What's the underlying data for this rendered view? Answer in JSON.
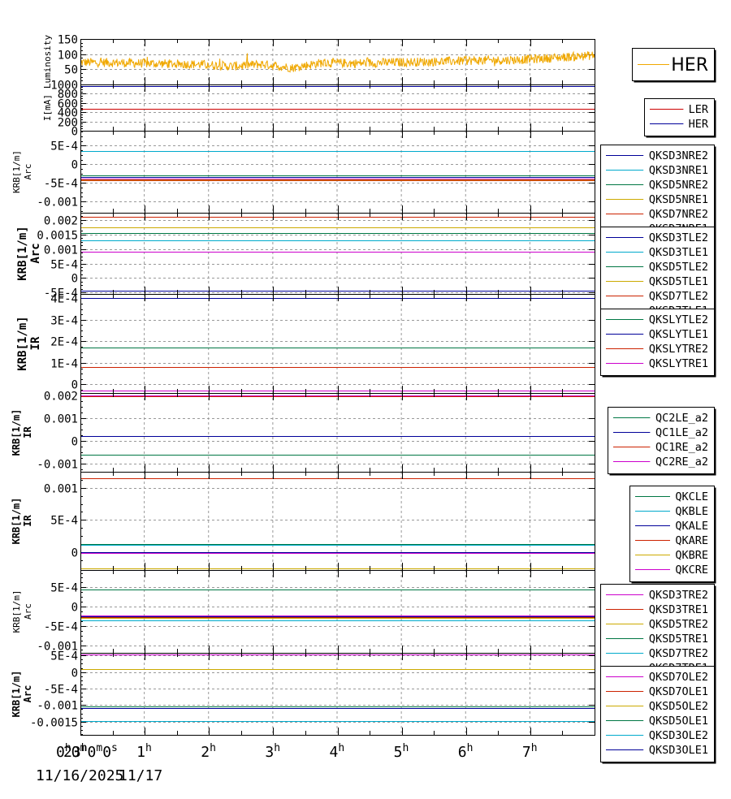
{
  "chart_data": [
    {
      "type": "line",
      "ylabel": [
        "Luminosity"
      ],
      "ylim": [
        0,
        150
      ],
      "yticks": [
        {
          "v": 150,
          "t": "150"
        },
        {
          "v": 100,
          "t": "100"
        },
        {
          "v": 50,
          "t": "50"
        }
      ],
      "legend_style": "big",
      "series": [
        {
          "name": "HER",
          "color": "#f0a800",
          "noisy": true,
          "baseline": [
            73,
            72,
            70,
            68,
            66,
            60,
            67,
            55,
            72,
            70,
            72,
            74,
            76,
            79,
            80,
            84,
            90,
            96
          ]
        }
      ]
    },
    {
      "type": "line",
      "ylabel": [
        "I[mA]"
      ],
      "ylim": [
        0,
        1000
      ],
      "yticks": [
        {
          "v": 1000,
          "t": "1000"
        },
        {
          "v": 800,
          "t": "800"
        },
        {
          "v": 600,
          "t": "600"
        },
        {
          "v": 400,
          "t": "400"
        },
        {
          "v": 200,
          "t": "200"
        },
        {
          "v": 0,
          "t": "0"
        }
      ],
      "series": [
        {
          "name": "LER",
          "color": "#cc0000",
          "values": [
            470,
            470
          ]
        },
        {
          "name": "HER",
          "color": "#000099",
          "values": [
            960,
            960
          ]
        }
      ]
    },
    {
      "type": "line",
      "ylabel": [
        "KRB[1/m]",
        "Arc"
      ],
      "ylim": [
        -0.0013,
        0.0009
      ],
      "yticks": [
        {
          "v": 0.0005,
          "t": "5E-4"
        },
        {
          "v": 0,
          "t": "0"
        },
        {
          "v": -0.0005,
          "t": "-5E-4"
        },
        {
          "v": -0.001,
          "t": "-0.001"
        }
      ],
      "series": [
        {
          "name": "QKSD3NRE2",
          "color": "#000099",
          "values": [
            -0.00035,
            -0.00035
          ]
        },
        {
          "name": "QKSD3NRE1",
          "color": "#00aacc",
          "values": [
            0.00035,
            0.00035
          ]
        },
        {
          "name": "QKSD5NRE2",
          "color": "#007744",
          "values": [
            -0.0003,
            -0.0003
          ]
        },
        {
          "name": "QKSD5NRE1",
          "color": "#ccaa00",
          "values": [
            -0.0004,
            -0.0004
          ]
        },
        {
          "name": "QKSD7NRE2",
          "color": "#cc2200",
          "values": [
            -0.00042,
            -0.00042
          ]
        },
        {
          "name": "QKSD7NRE1",
          "color": "#cc00cc",
          "values": [
            -0.00038,
            -0.00038
          ]
        }
      ]
    },
    {
      "type": "line",
      "ylabel": [
        "KRB[1/m]",
        "Arc"
      ],
      "ylim": [
        -0.00055,
        0.00225
      ],
      "yticks": [
        {
          "v": 0.002,
          "t": "0.002"
        },
        {
          "v": 0.0015,
          "t": "0.0015"
        },
        {
          "v": 0.001,
          "t": "0.001"
        },
        {
          "v": 0.0005,
          "t": "5E-4"
        },
        {
          "v": 0,
          "t": "0"
        },
        {
          "v": -0.0005,
          "t": "-5E-4"
        }
      ],
      "series": [
        {
          "name": "QKSD3TLE2",
          "color": "#000099",
          "values": [
            -0.00045,
            -0.00045
          ]
        },
        {
          "name": "QKSD3TLE1",
          "color": "#00aacc",
          "values": [
            0.0013,
            0.0013
          ]
        },
        {
          "name": "QKSD5TLE2",
          "color": "#007744",
          "values": [
            0.00155,
            0.00155
          ]
        },
        {
          "name": "QKSD5TLE1",
          "color": "#ccaa00",
          "values": [
            0.00175,
            0.00175
          ]
        },
        {
          "name": "QKSD7TLE2",
          "color": "#cc2200",
          "values": [
            0.0021,
            0.0021
          ]
        },
        {
          "name": "QKSD7TLE1",
          "color": "#cc00cc",
          "values": [
            0.0009,
            0.0009
          ]
        }
      ]
    },
    {
      "type": "line",
      "ylabel": [
        "KRB[1/m]",
        "IR"
      ],
      "ylim": [
        -4e-05,
        0.00042
      ],
      "yticks": [
        {
          "v": 0.0004,
          "t": "4E-4"
        },
        {
          "v": 0.0003,
          "t": "3E-4"
        },
        {
          "v": 0.0002,
          "t": "2E-4"
        },
        {
          "v": 0.0001,
          "t": "1E-4"
        },
        {
          "v": 0,
          "t": "0"
        }
      ],
      "series": [
        {
          "name": "QKSLYTLE2",
          "color": "#007744",
          "values": [
            0.00017,
            0.00017
          ]
        },
        {
          "name": "QKSLYTLE1",
          "color": "#000099",
          "values": [
            0.0004,
            0.0004
          ]
        },
        {
          "name": "QKSLYTRE2",
          "color": "#cc2200",
          "values": [
            8e-05,
            8e-05
          ]
        },
        {
          "name": "QKSLYTRE1",
          "color": "#cc00cc",
          "values": [
            -3e-05,
            -3e-05
          ]
        }
      ]
    },
    {
      "type": "line",
      "ylabel": [
        "KRB[1/m]",
        "IR"
      ],
      "ylim": [
        -0.00135,
        0.0021
      ],
      "yticks": [
        {
          "v": 0.002,
          "t": "0.002"
        },
        {
          "v": 0.001,
          "t": "0.001"
        },
        {
          "v": 0,
          "t": "0"
        },
        {
          "v": -0.001,
          "t": "-0.001"
        }
      ],
      "series": [
        {
          "name": "QC2LE_a2",
          "color": "#007744",
          "values": [
            -0.0006,
            -0.0006
          ]
        },
        {
          "name": "QC1LE_a2",
          "color": "#000099",
          "values": [
            0.0002,
            0.0002
          ]
        },
        {
          "name": "QC1RE_a2",
          "color": "#cc2200",
          "values": [
            0.00195,
            0.00195
          ]
        },
        {
          "name": "QC2RE_a2",
          "color": "#cc00cc",
          "values": [
            0.00198,
            0.00198
          ]
        }
      ]
    },
    {
      "type": "line",
      "ylabel": [
        "KRB[1/m]",
        "IR"
      ],
      "ylim": [
        -0.00028,
        0.00125
      ],
      "yticks": [
        {
          "v": 0.001,
          "t": "0.001"
        },
        {
          "v": 0.0005,
          "t": "5E-4"
        },
        {
          "v": 0,
          "t": "0"
        }
      ],
      "series": [
        {
          "name": "QKCLE",
          "color": "#007744",
          "values": [
            0.00013,
            0.00013
          ]
        },
        {
          "name": "QKBLE",
          "color": "#00aacc",
          "values": [
            0.000115,
            0.000115
          ]
        },
        {
          "name": "QKALE",
          "color": "#000099",
          "values": [
            0.0,
            0.0
          ]
        },
        {
          "name": "QKARE",
          "color": "#cc2200",
          "values": [
            0.00115,
            0.00115
          ]
        },
        {
          "name": "QKBRE",
          "color": "#ccaa00",
          "values": [
            -0.00025,
            -0.00025
          ]
        },
        {
          "name": "QKCRE",
          "color": "#cc00cc",
          "values": [
            -1e-05,
            -1e-05
          ]
        }
      ]
    },
    {
      "type": "line",
      "ylabel": [
        "KRB[1/m]",
        "Arc"
      ],
      "ylim": [
        -0.0012,
        0.00095
      ],
      "yticks": [
        {
          "v": 0.0005,
          "t": "5E-4"
        },
        {
          "v": 0,
          "t": "0"
        },
        {
          "v": -0.0005,
          "t": "-5E-4"
        },
        {
          "v": -0.001,
          "t": "-0.001"
        }
      ],
      "series": [
        {
          "name": "QKSD3TRE2",
          "color": "#cc00cc",
          "values": [
            -0.00022,
            -0.00022
          ]
        },
        {
          "name": "QKSD3TRE1",
          "color": "#cc2200",
          "values": [
            -0.00028,
            -0.00028
          ]
        },
        {
          "name": "QKSD5TRE2",
          "color": "#ccaa00",
          "values": [
            -0.0003,
            -0.0003
          ]
        },
        {
          "name": "QKSD5TRE1",
          "color": "#007744",
          "values": [
            0.00045,
            0.00045
          ]
        },
        {
          "name": "QKSD7TRE2",
          "color": "#00aacc",
          "values": [
            -0.00035,
            -0.00035
          ]
        },
        {
          "name": "QKSD7TRE1",
          "color": "#000099",
          "values": [
            -0.00026,
            -0.00026
          ]
        }
      ]
    },
    {
      "type": "line",
      "ylabel": [
        "KRB[1/m]",
        "Arc"
      ],
      "ylim": [
        -0.0019,
        0.00058
      ],
      "yticks": [
        {
          "v": 0.0005,
          "t": "5E-4"
        },
        {
          "v": 0,
          "t": "0"
        },
        {
          "v": -0.0005,
          "t": "-5E-4"
        },
        {
          "v": -0.001,
          "t": "-0.001"
        },
        {
          "v": -0.0015,
          "t": "-0.0015"
        }
      ],
      "series": [
        {
          "name": "QKSD7OLE2",
          "color": "#cc00cc",
          "values": [
            0.00053,
            0.00053
          ]
        },
        {
          "name": "QKSD7OLE1",
          "color": "#cc2200",
          "values": [
            -0.00108,
            -0.00108
          ]
        },
        {
          "name": "QKSD5OLE2",
          "color": "#ccaa00",
          "values": [
            0.0001,
            0.0001
          ]
        },
        {
          "name": "QKSD5OLE1",
          "color": "#007744",
          "values": [
            -0.00105,
            -0.00105
          ]
        },
        {
          "name": "QKSD3OLE2",
          "color": "#00aacc",
          "values": [
            -0.00148,
            -0.00148
          ]
        },
        {
          "name": "QKSD3OLE1",
          "color": "#000099",
          "values": [
            -0.0011,
            -0.0011
          ]
        }
      ]
    }
  ],
  "x_axis": {
    "range_hours": [
      0,
      8
    ],
    "ticks": [
      {
        "h": 0,
        "t": "23",
        "u": "h",
        "rest": [
          {
            "t": "0"
          },
          {
            "t": "m",
            "sup": true
          },
          {
            "t": "0"
          },
          {
            "t": "s",
            "sup": true
          }
        ]
      },
      {
        "h": 0,
        "t": "0",
        "u": "h",
        "rest": [
          {
            "t": "0"
          },
          {
            "t": "m",
            "sup": true
          }
        ]
      },
      {
        "h": 1,
        "t": "1",
        "u": "h"
      },
      {
        "h": 2,
        "t": "2",
        "u": "h"
      },
      {
        "h": 3,
        "t": "3",
        "u": "h"
      },
      {
        "h": 4,
        "t": "4",
        "u": "h"
      },
      {
        "h": 5,
        "t": "5",
        "u": "h"
      },
      {
        "h": 6,
        "t": "6",
        "u": "h"
      },
      {
        "h": 7,
        "t": "7",
        "u": "h"
      }
    ],
    "dates": [
      "11/16/2025",
      "11/17"
    ]
  }
}
